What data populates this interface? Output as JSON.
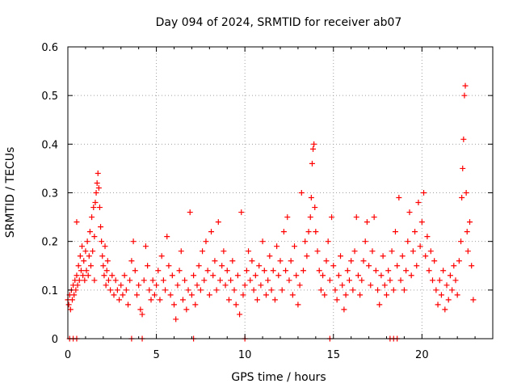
{
  "chart_data": {
    "type": "scatter",
    "title": "Day 094 of 2024, SRMTID for receiver ab07",
    "xlabel": "GPS time / hours",
    "ylabel": "SRMTID / TECUs",
    "xlim": [
      0,
      24
    ],
    "ylim": [
      0,
      0.6
    ],
    "xticks": [
      0,
      5,
      10,
      15,
      20
    ],
    "xtick_labels": [
      "0",
      "5",
      "10",
      "15",
      "20"
    ],
    "yticks": [
      0,
      0.1,
      0.2,
      0.3,
      0.4,
      0.5,
      0.6
    ],
    "ytick_labels": [
      "0",
      "0.1",
      "0.2",
      "0.3",
      "0.4",
      "0.5",
      "0.6"
    ],
    "grid": true,
    "marker": "+",
    "color": "#ff0000",
    "series": [
      {
        "name": "SRMTID",
        "points": [
          [
            0.0,
            0.08
          ],
          [
            0.05,
            0.07
          ],
          [
            0.1,
            0.09
          ],
          [
            0.15,
            0.06
          ],
          [
            0.2,
            0.1
          ],
          [
            0.25,
            0.08
          ],
          [
            0.3,
            0.11
          ],
          [
            0.35,
            0.09
          ],
          [
            0.4,
            0.12
          ],
          [
            0.45,
            0.1
          ],
          [
            0.5,
            0.13
          ],
          [
            0.5,
            0.24
          ],
          [
            0.55,
            0.11
          ],
          [
            0.6,
            0.15
          ],
          [
            0.65,
            0.12
          ],
          [
            0.7,
            0.17
          ],
          [
            0.75,
            0.14
          ],
          [
            0.8,
            0.19
          ],
          [
            0.85,
            0.13
          ],
          [
            0.9,
            0.16
          ],
          [
            0.95,
            0.12
          ],
          [
            1.0,
            0.18
          ],
          [
            1.05,
            0.14
          ],
          [
            1.1,
            0.2
          ],
          [
            1.15,
            0.13
          ],
          [
            1.2,
            0.17
          ],
          [
            1.25,
            0.22
          ],
          [
            1.3,
            0.15
          ],
          [
            1.35,
            0.25
          ],
          [
            1.4,
            0.18
          ],
          [
            1.45,
            0.27
          ],
          [
            1.5,
            0.12
          ],
          [
            1.5,
            0.21
          ],
          [
            1.55,
            0.28
          ],
          [
            1.6,
            0.3
          ],
          [
            1.65,
            0.32
          ],
          [
            1.7,
            0.34
          ],
          [
            1.75,
            0.31
          ],
          [
            1.8,
            0.27
          ],
          [
            1.85,
            0.23
          ],
          [
            1.9,
            0.2
          ],
          [
            1.95,
            0.17
          ],
          [
            2.0,
            0.15
          ],
          [
            2.05,
            0.13
          ],
          [
            2.1,
            0.19
          ],
          [
            2.15,
            0.11
          ],
          [
            2.2,
            0.14
          ],
          [
            2.25,
            0.16
          ],
          [
            2.3,
            0.12
          ],
          [
            2.4,
            0.1
          ],
          [
            2.5,
            0.13
          ],
          [
            2.6,
            0.09
          ],
          [
            2.7,
            0.12
          ],
          [
            2.8,
            0.1
          ],
          [
            2.9,
            0.08
          ],
          [
            3.0,
            0.11
          ],
          [
            3.1,
            0.09
          ],
          [
            3.2,
            0.13
          ],
          [
            3.3,
            0.1
          ],
          [
            3.4,
            0.07
          ],
          [
            3.5,
            0.12
          ],
          [
            3.6,
            0.16
          ],
          [
            3.7,
            0.2
          ],
          [
            3.8,
            0.14
          ],
          [
            3.9,
            0.09
          ],
          [
            4.0,
            0.11
          ],
          [
            4.1,
            0.06
          ],
          [
            4.2,
            0.05
          ],
          [
            4.3,
            0.12
          ],
          [
            4.4,
            0.19
          ],
          [
            4.5,
            0.15
          ],
          [
            4.6,
            0.1
          ],
          [
            4.7,
            0.08
          ],
          [
            4.8,
            0.12
          ],
          [
            4.9,
            0.09
          ],
          [
            5.0,
            0.11
          ],
          [
            5.1,
            0.14
          ],
          [
            5.2,
            0.08
          ],
          [
            5.3,
            0.17
          ],
          [
            5.4,
            0.12
          ],
          [
            5.5,
            0.1
          ],
          [
            5.6,
            0.21
          ],
          [
            5.7,
            0.15
          ],
          [
            5.8,
            0.09
          ],
          [
            5.9,
            0.13
          ],
          [
            6.0,
            0.07
          ],
          [
            6.1,
            0.04
          ],
          [
            6.2,
            0.11
          ],
          [
            6.3,
            0.14
          ],
          [
            6.4,
            0.18
          ],
          [
            6.5,
            0.08
          ],
          [
            6.6,
            0.12
          ],
          [
            6.7,
            0.06
          ],
          [
            6.8,
            0.1
          ],
          [
            6.9,
            0.26
          ],
          [
            7.0,
            0.09
          ],
          [
            7.1,
            0.13
          ],
          [
            7.2,
            0.07
          ],
          [
            7.3,
            0.11
          ],
          [
            7.4,
            0.15
          ],
          [
            7.5,
            0.1
          ],
          [
            7.6,
            0.18
          ],
          [
            7.7,
            0.12
          ],
          [
            7.8,
            0.2
          ],
          [
            7.9,
            0.14
          ],
          [
            8.0,
            0.09
          ],
          [
            8.1,
            0.22
          ],
          [
            8.2,
            0.13
          ],
          [
            8.3,
            0.16
          ],
          [
            8.4,
            0.1
          ],
          [
            8.5,
            0.24
          ],
          [
            8.6,
            0.12
          ],
          [
            8.7,
            0.15
          ],
          [
            8.8,
            0.18
          ],
          [
            8.9,
            0.11
          ],
          [
            9.0,
            0.14
          ],
          [
            9.1,
            0.08
          ],
          [
            9.2,
            0.12
          ],
          [
            9.3,
            0.16
          ],
          [
            9.4,
            0.1
          ],
          [
            9.5,
            0.07
          ],
          [
            9.6,
            0.13
          ],
          [
            9.7,
            0.05
          ],
          [
            9.8,
            0.26
          ],
          [
            9.9,
            0.09
          ],
          [
            10.0,
            0.11
          ],
          [
            10.1,
            0.14
          ],
          [
            10.2,
            0.18
          ],
          [
            10.3,
            0.12
          ],
          [
            10.4,
            0.16
          ],
          [
            10.5,
            0.1
          ],
          [
            10.6,
            0.13
          ],
          [
            10.7,
            0.08
          ],
          [
            10.8,
            0.15
          ],
          [
            10.9,
            0.11
          ],
          [
            11.0,
            0.2
          ],
          [
            11.1,
            0.14
          ],
          [
            11.2,
            0.09
          ],
          [
            11.3,
            0.12
          ],
          [
            11.4,
            0.17
          ],
          [
            11.5,
            0.1
          ],
          [
            11.6,
            0.14
          ],
          [
            11.7,
            0.08
          ],
          [
            11.8,
            0.19
          ],
          [
            11.9,
            0.13
          ],
          [
            12.0,
            0.16
          ],
          [
            12.1,
            0.1
          ],
          [
            12.2,
            0.22
          ],
          [
            12.3,
            0.14
          ],
          [
            12.4,
            0.25
          ],
          [
            12.5,
            0.12
          ],
          [
            12.6,
            0.16
          ],
          [
            12.7,
            0.09
          ],
          [
            12.8,
            0.19
          ],
          [
            12.9,
            0.13
          ],
          [
            13.0,
            0.07
          ],
          [
            13.1,
            0.11
          ],
          [
            13.2,
            0.3
          ],
          [
            13.3,
            0.14
          ],
          [
            13.4,
            0.2
          ],
          [
            13.5,
            0.17
          ],
          [
            13.6,
            0.22
          ],
          [
            13.7,
            0.25
          ],
          [
            13.75,
            0.29
          ],
          [
            13.8,
            0.36
          ],
          [
            13.85,
            0.39
          ],
          [
            13.9,
            0.4
          ],
          [
            13.95,
            0.27
          ],
          [
            14.0,
            0.22
          ],
          [
            14.1,
            0.18
          ],
          [
            14.2,
            0.14
          ],
          [
            14.3,
            0.1
          ],
          [
            14.4,
            0.13
          ],
          [
            14.5,
            0.09
          ],
          [
            14.6,
            0.16
          ],
          [
            14.7,
            0.2
          ],
          [
            14.8,
            0.12
          ],
          [
            14.9,
            0.25
          ],
          [
            15.0,
            0.15
          ],
          [
            15.1,
            0.1
          ],
          [
            15.2,
            0.08
          ],
          [
            15.3,
            0.13
          ],
          [
            15.4,
            0.17
          ],
          [
            15.5,
            0.11
          ],
          [
            15.6,
            0.06
          ],
          [
            15.7,
            0.09
          ],
          [
            15.8,
            0.14
          ],
          [
            15.9,
            0.12
          ],
          [
            16.0,
            0.16
          ],
          [
            16.1,
            0.1
          ],
          [
            16.2,
            0.18
          ],
          [
            16.3,
            0.25
          ],
          [
            16.4,
            0.13
          ],
          [
            16.5,
            0.09
          ],
          [
            16.6,
            0.12
          ],
          [
            16.7,
            0.16
          ],
          [
            16.8,
            0.2
          ],
          [
            16.9,
            0.24
          ],
          [
            17.0,
            0.15
          ],
          [
            17.1,
            0.11
          ],
          [
            17.2,
            0.18
          ],
          [
            17.3,
            0.25
          ],
          [
            17.4,
            0.14
          ],
          [
            17.5,
            0.1
          ],
          [
            17.6,
            0.07
          ],
          [
            17.7,
            0.13
          ],
          [
            17.8,
            0.17
          ],
          [
            17.9,
            0.11
          ],
          [
            18.0,
            0.09
          ],
          [
            18.1,
            0.14
          ],
          [
            18.2,
            0.12
          ],
          [
            18.3,
            0.18
          ],
          [
            18.4,
            0.1
          ],
          [
            18.5,
            0.22
          ],
          [
            18.6,
            0.15
          ],
          [
            18.7,
            0.29
          ],
          [
            18.8,
            0.12
          ],
          [
            18.9,
            0.17
          ],
          [
            19.0,
            0.1
          ],
          [
            19.1,
            0.14
          ],
          [
            19.2,
            0.2
          ],
          [
            19.3,
            0.26
          ],
          [
            19.4,
            0.13
          ],
          [
            19.5,
            0.18
          ],
          [
            19.6,
            0.22
          ],
          [
            19.7,
            0.15
          ],
          [
            19.8,
            0.28
          ],
          [
            19.9,
            0.19
          ],
          [
            20.0,
            0.24
          ],
          [
            20.1,
            0.3
          ],
          [
            20.2,
            0.17
          ],
          [
            20.3,
            0.21
          ],
          [
            20.4,
            0.14
          ],
          [
            20.5,
            0.18
          ],
          [
            20.6,
            0.12
          ],
          [
            20.7,
            0.16
          ],
          [
            20.8,
            0.1
          ],
          [
            20.9,
            0.07
          ],
          [
            21.0,
            0.12
          ],
          [
            21.1,
            0.09
          ],
          [
            21.2,
            0.14
          ],
          [
            21.3,
            0.06
          ],
          [
            21.4,
            0.11
          ],
          [
            21.5,
            0.08
          ],
          [
            21.6,
            0.13
          ],
          [
            21.7,
            0.1
          ],
          [
            21.8,
            0.15
          ],
          [
            21.9,
            0.12
          ],
          [
            22.0,
            0.09
          ],
          [
            22.1,
            0.16
          ],
          [
            22.2,
            0.2
          ],
          [
            22.25,
            0.29
          ],
          [
            22.3,
            0.35
          ],
          [
            22.35,
            0.41
          ],
          [
            22.4,
            0.5
          ],
          [
            22.45,
            0.52
          ],
          [
            22.5,
            0.3
          ],
          [
            22.55,
            0.22
          ],
          [
            22.6,
            0.18
          ],
          [
            22.7,
            0.24
          ],
          [
            22.8,
            0.15
          ],
          [
            22.9,
            0.08
          ],
          [
            0.1,
            0.0
          ],
          [
            0.3,
            0.0
          ],
          [
            0.5,
            0.0
          ],
          [
            3.6,
            0.0
          ],
          [
            4.2,
            0.0
          ],
          [
            7.1,
            0.0
          ],
          [
            10.0,
            0.0
          ],
          [
            14.8,
            0.0
          ],
          [
            18.2,
            0.0
          ],
          [
            18.4,
            0.0
          ],
          [
            18.6,
            0.0
          ]
        ]
      }
    ]
  }
}
